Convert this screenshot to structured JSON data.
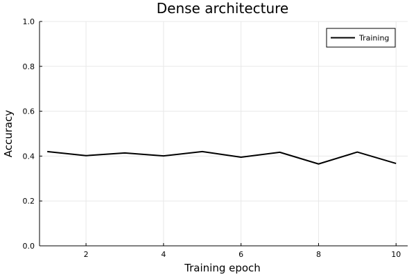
{
  "chart_data": {
    "type": "line",
    "title": "Dense architecture",
    "xlabel": "Training epoch",
    "ylabel": "Accuracy",
    "xlim": [
      0.8,
      10.3
    ],
    "ylim": [
      0.0,
      1.0
    ],
    "xticks": [
      2,
      4,
      6,
      8,
      10
    ],
    "yticks": [
      0.0,
      0.2,
      0.4,
      0.6,
      0.8,
      1.0
    ],
    "xtick_labels": [
      "2",
      "4",
      "6",
      "8",
      "10"
    ],
    "ytick_labels": [
      "0.0",
      "0.2",
      "0.4",
      "0.6",
      "0.8",
      "1.0"
    ],
    "grid": true,
    "legend_position": "top-right",
    "series": [
      {
        "name": "Training",
        "color": "#000000",
        "x": [
          1,
          2,
          3,
          4,
          5,
          6,
          7,
          8,
          9,
          10
        ],
        "y": [
          0.42,
          0.402,
          0.414,
          0.401,
          0.42,
          0.395,
          0.417,
          0.365,
          0.418,
          0.367
        ]
      }
    ]
  }
}
